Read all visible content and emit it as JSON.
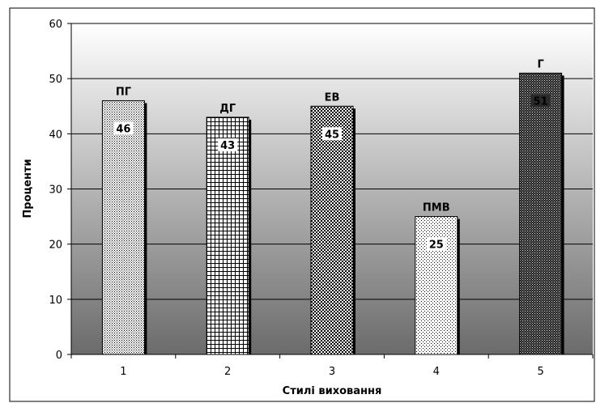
{
  "chart_data": {
    "type": "bar",
    "categories": [
      "1",
      "2",
      "3",
      "4",
      "5"
    ],
    "values": [
      46,
      43,
      45,
      25,
      51
    ],
    "value_labels": [
      "46",
      "43",
      "45",
      "25",
      "51"
    ],
    "bar_labels": [
      "ПГ",
      "ДГ",
      "ЕВ",
      "ПМВ",
      "Г"
    ],
    "patterns": [
      "dense-dots",
      "grid",
      "checker",
      "sparse-dots",
      "dark-dots"
    ],
    "xlabel": "Стилі виховання",
    "ylabel": "Проценти",
    "ylim": [
      0,
      60
    ],
    "yticks": [
      "0",
      "10",
      "20",
      "30",
      "40",
      "50",
      "60"
    ],
    "grid": true,
    "colors": {
      "plot_top": "#ffffff",
      "plot_bottom": "#6b6b6b",
      "gridline": "#000000",
      "bar_shadow": "#000000"
    }
  }
}
